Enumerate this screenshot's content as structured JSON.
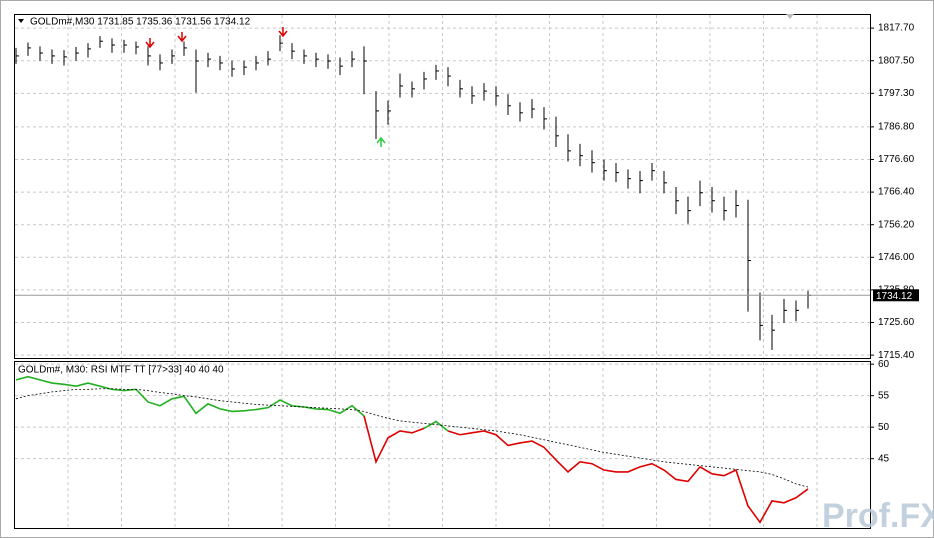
{
  "chart_data": [
    {
      "type": "ohlc",
      "title": "GOLDm#,M30  1731.85 1735.36 1731.56 1734.12",
      "last_price": 1734.12,
      "color": "#000000",
      "ylim": [
        1714.5,
        1821.8
      ],
      "yticks": [
        {
          "value": 1817.7,
          "label": "1817.70"
        },
        {
          "value": 1807.5,
          "label": "1807.50"
        },
        {
          "value": 1797.3,
          "label": "1797.30"
        },
        {
          "value": 1786.8,
          "label": "1786.80"
        },
        {
          "value": 1776.6,
          "label": "1776.60"
        },
        {
          "value": 1766.4,
          "label": "1766.40"
        },
        {
          "value": 1756.2,
          "label": "1756.20"
        },
        {
          "value": 1746,
          "label": "1746.00"
        },
        {
          "value": 1735.8,
          "label": "1735.80"
        },
        {
          "value": 1725.6,
          "label": "1725.60"
        },
        {
          "value": 1715.4,
          "label": "1715.40"
        }
      ],
      "grid": true,
      "high": [
        1811.5,
        1813.2,
        1812,
        1811,
        1810.8,
        1811.8,
        1813,
        1815.2,
        1814.5,
        1814,
        1813.5,
        1812,
        1809.5,
        1811,
        1813.5,
        1811,
        1810,
        1809,
        1807.5,
        1807.5,
        1809,
        1810.5,
        1815.5,
        1813,
        1811,
        1810,
        1809.5,
        1808.5,
        1810.5,
        1812,
        1798,
        1795,
        1803.5,
        1801,
        1804,
        1806.2,
        1805.5,
        1801.5,
        1799.5,
        1800.5,
        1799.5,
        1797,
        1794.5,
        1795.5,
        1793,
        1790,
        1784.5,
        1781.5,
        1779.5,
        1776.5,
        1775.5,
        1773.5,
        1773,
        1775.5,
        1773,
        1768,
        1765,
        1770,
        1768,
        1765,
        1767,
        1764,
        1735,
        1728,
        1733,
        1732.5,
        1735.5
      ],
      "low": [
        1806.5,
        1809,
        1807.5,
        1806.5,
        1806,
        1807.5,
        1808.5,
        1811.5,
        1810,
        1810,
        1809.5,
        1806,
        1804.5,
        1806.5,
        1809,
        1797.5,
        1805.5,
        1804.5,
        1802.5,
        1803,
        1804.5,
        1806,
        1810.5,
        1808,
        1806.5,
        1805.5,
        1805,
        1803,
        1805.5,
        1797,
        1783,
        1787.5,
        1796,
        1796,
        1798.5,
        1801.5,
        1799.5,
        1796,
        1794,
        1795,
        1793.5,
        1790.5,
        1788.5,
        1789.5,
        1786,
        1780.5,
        1776,
        1774.5,
        1772.5,
        1770,
        1769.5,
        1767.5,
        1766,
        1770,
        1766,
        1759.5,
        1756.5,
        1762,
        1760,
        1757.5,
        1758.5,
        1729,
        1720,
        1717,
        1725.5,
        1726,
        1730
      ],
      "close": [
        1809,
        1811.5,
        1809.9,
        1809,
        1808.7,
        1809.9,
        1811.2,
        1813.6,
        1812.4,
        1812.4,
        1811.8,
        1809,
        1806.8,
        1809,
        1811.5,
        1807.4,
        1808,
        1806.8,
        1804.9,
        1805.5,
        1806.8,
        1808,
        1813,
        1810.5,
        1809,
        1808,
        1807.4,
        1805.8,
        1808,
        1807.4,
        1791.8,
        1791.8,
        1799.6,
        1798.7,
        1801.8,
        1804.3,
        1802.7,
        1798.7,
        1796.5,
        1798,
        1796.5,
        1793.4,
        1791.2,
        1792.4,
        1789.3,
        1784,
        1779.3,
        1777.8,
        1775.6,
        1773.1,
        1772.5,
        1770.6,
        1770,
        1773.1,
        1769.3,
        1763.7,
        1760.6,
        1766.2,
        1763.7,
        1760.6,
        1762.2,
        1745,
        1724.7,
        1723.2,
        1729.4,
        1729.4,
        1734.1
      ]
    },
    {
      "type": "line",
      "title": "GOLDm#, M30: RSI MTF TT [77>33]  40 40 40",
      "ylim": [
        34,
        60.5
      ],
      "yticks": [
        60,
        55,
        50,
        45
      ],
      "grid": true,
      "series": [
        {
          "color": "#22b022",
          "values": [
            57.5,
            58,
            57.5,
            57,
            56.8,
            56.5,
            57,
            56.5,
            56,
            55.8,
            56,
            54,
            53.4,
            54.5,
            54.9,
            52.2,
            53.7,
            52.9,
            52.5,
            52.6,
            52.8,
            53.1,
            54.3,
            53.4,
            53.2,
            52.9,
            52.8,
            52.2,
            53.4,
            51.8,
            null,
            null,
            null,
            null,
            49.8,
            50.9,
            49.4,
            null,
            null,
            null,
            null,
            null,
            null,
            null,
            null,
            null,
            null,
            null,
            null,
            null,
            null,
            null,
            null,
            null,
            null,
            null,
            null,
            null,
            null,
            null,
            null,
            null,
            null,
            null,
            null,
            null,
            null
          ]
        },
        {
          "color": "#dd0000",
          "values": [
            null,
            null,
            null,
            null,
            null,
            null,
            null,
            null,
            null,
            null,
            null,
            null,
            null,
            null,
            null,
            null,
            null,
            null,
            null,
            null,
            null,
            null,
            null,
            null,
            null,
            null,
            null,
            null,
            null,
            51.8,
            44.5,
            48.3,
            49.4,
            49.1,
            49.8,
            null,
            49.4,
            48.8,
            49.1,
            49.4,
            48.8,
            47.1,
            47.5,
            47.8,
            46.8,
            44.8,
            42.9,
            44.5,
            44.2,
            43.2,
            42.9,
            42.9,
            43.7,
            44.2,
            43.2,
            41.7,
            41.4,
            43.7,
            42.6,
            42.3,
            43.2,
            37.5,
            34.9,
            38.3,
            38,
            38.8,
            40.2
          ]
        },
        {
          "color": "#000000",
          "dash": true,
          "values": [
            54.5,
            55,
            55.3,
            55.6,
            55.8,
            56,
            56,
            56.1,
            56.1,
            56,
            56,
            55.8,
            55.5,
            55.3,
            55,
            54.8,
            54.5,
            54.2,
            54,
            53.8,
            53.6,
            53.5,
            53.4,
            53.3,
            53.2,
            53.1,
            53,
            52.9,
            52.8,
            52.5,
            51.9,
            51.4,
            51,
            50.8,
            50.6,
            50.4,
            50.2,
            50,
            49.8,
            49.6,
            49.4,
            49.1,
            48.8,
            48.4,
            48,
            47.6,
            47.2,
            46.8,
            46.4,
            46,
            45.7,
            45.4,
            45.1,
            44.8,
            44.5,
            44.3,
            44.1,
            43.9,
            43.7,
            43.5,
            43.3,
            43.1,
            42.9,
            42.5,
            41.8,
            41,
            40.5
          ]
        }
      ]
    }
  ],
  "watermark": "Prof.FX"
}
